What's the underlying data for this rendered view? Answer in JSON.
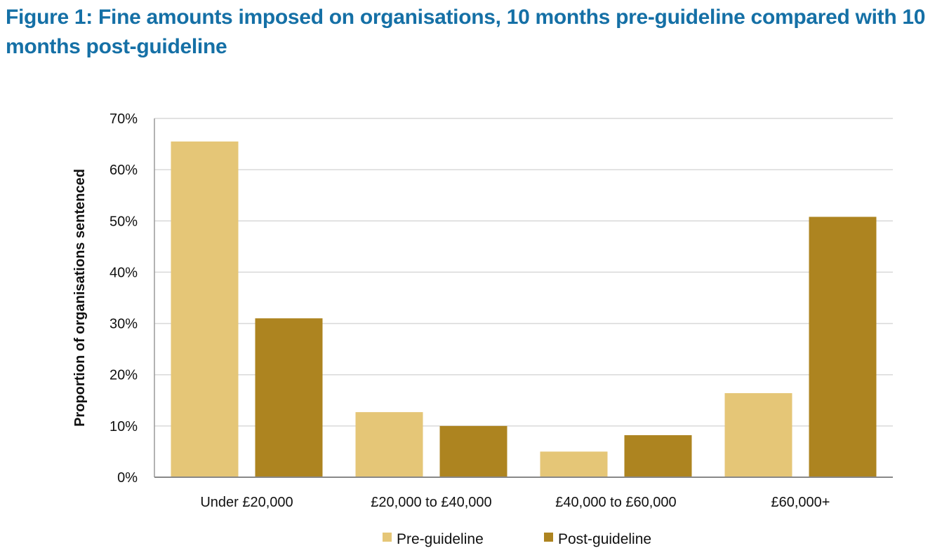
{
  "figure": {
    "title": "Figure 1: Fine amounts imposed on organisations, 10 months pre-guideline compared with 10  months post-guideline"
  },
  "chart_data": {
    "type": "bar",
    "title": "Figure 1: Fine amounts imposed on organisations, 10 months pre-guideline compared with 10  months post-guideline",
    "xlabel": "",
    "ylabel": "Proportion of organisations sentenced",
    "categories": [
      "Under £20,000",
      "£20,000 to £40,000",
      "£40,000 to £60,000",
      "£60,000+"
    ],
    "series": [
      {
        "name": "Pre-guideline",
        "color": "#e5c677",
        "values": [
          65.5,
          12.7,
          5.0,
          16.4
        ]
      },
      {
        "name": "Post-guideline",
        "color": "#ad8420",
        "values": [
          31.0,
          10.0,
          8.2,
          50.8
        ]
      }
    ],
    "ylim": [
      0,
      70
    ],
    "yticks": [
      0,
      10,
      20,
      30,
      40,
      50,
      60,
      70
    ],
    "ytick_labels": [
      "0%",
      "10%",
      "20%",
      "30%",
      "40%",
      "50%",
      "60%",
      "70%"
    ],
    "grid": true,
    "legend_position": "bottom"
  }
}
